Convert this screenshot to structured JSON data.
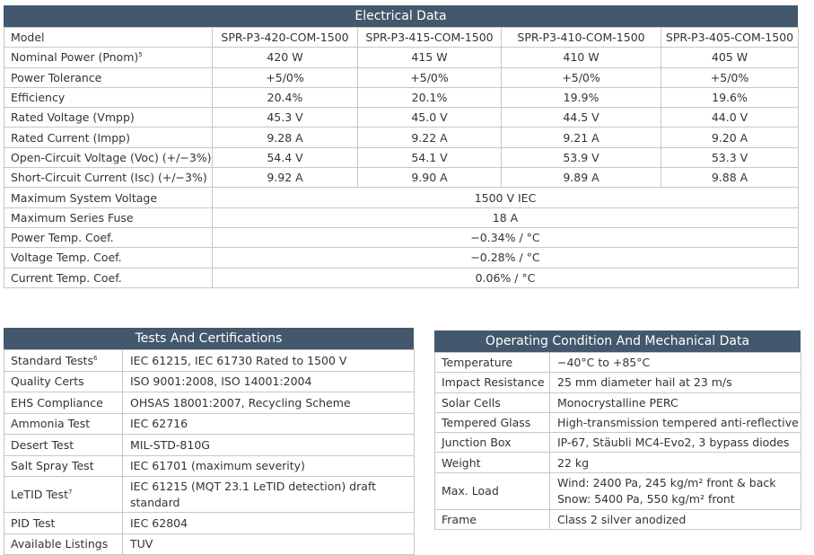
{
  "electrical": {
    "title": "Electrical Data",
    "columns": [
      "Model",
      "SPR-P3-420-COM-1500",
      "SPR-P3-415-COM-1500",
      "SPR-P3-410-COM-1500",
      "SPR-P3-405-COM-1500"
    ],
    "rows": [
      {
        "label": "Nominal Power (Pnom)",
        "sup": "5",
        "values": [
          "420 W",
          "415 W",
          "410 W",
          "405 W"
        ]
      },
      {
        "label": "Power Tolerance",
        "values": [
          "+5/0%",
          "+5/0%",
          "+5/0%",
          "+5/0%"
        ]
      },
      {
        "label": "Efficiency",
        "values": [
          "20.4%",
          "20.1%",
          "19.9%",
          "19.6%"
        ]
      },
      {
        "label": "Rated Voltage (Vmpp)",
        "values": [
          "45.3 V",
          "45.0 V",
          "44.5 V",
          "44.0 V"
        ]
      },
      {
        "label": "Rated Current (Impp)",
        "values": [
          "9.28 A",
          "9.22 A",
          "9.21 A",
          "9.20 A"
        ]
      },
      {
        "label": "Open-Circuit Voltage (Voc) (+/−3%)",
        "values": [
          "54.4 V",
          "54.1 V",
          "53.9 V",
          "53.3 V"
        ]
      },
      {
        "label": "Short-Circuit Current (Isc) (+/−3%)",
        "values": [
          "9.92 A",
          "9.90 A",
          "9.89 A",
          "9.88 A"
        ]
      }
    ],
    "shared_rows": [
      {
        "label": "Maximum System Voltage",
        "value": "1500 V IEC"
      },
      {
        "label": "Maximum Series Fuse",
        "value": "18 A"
      },
      {
        "label": "Power Temp. Coef.",
        "value": "−0.34% / °C"
      },
      {
        "label": "Voltage Temp. Coef.",
        "value": "−0.28% / °C"
      },
      {
        "label": "Current Temp. Coef.",
        "value": "0.06% / °C"
      }
    ]
  },
  "tests": {
    "title": "Tests And Certifications",
    "rows": [
      {
        "label": "Standard Tests",
        "sup": "6",
        "value": "IEC 61215, IEC 61730 Rated to 1500 V"
      },
      {
        "label": "Quality Certs",
        "value": "ISO 9001:2008, ISO 14001:2004"
      },
      {
        "label": "EHS Compliance",
        "value": "OHSAS 18001:2007, Recycling Scheme"
      },
      {
        "label": "Ammonia Test",
        "value": "IEC 62716"
      },
      {
        "label": "Desert Test",
        "value": "MIL-STD-810G"
      },
      {
        "label": "Salt Spray Test",
        "value": "IEC 61701 (maximum severity)"
      },
      {
        "label": "LeTID Test",
        "sup": "7",
        "value": "IEC 61215 (MQT 23.1 LeTID detection) draft standard"
      },
      {
        "label": "PID Test",
        "value": "IEC 62804"
      },
      {
        "label": "Available Listings",
        "value": "TUV"
      }
    ]
  },
  "operating": {
    "title": "Operating Condition And Mechanical Data",
    "rows": [
      {
        "label": "Temperature",
        "value": "−40°C to +85°C"
      },
      {
        "label": "Impact Resistance",
        "value": "25 mm diameter hail at 23 m/s"
      },
      {
        "label": "Solar Cells",
        "value": "Monocrystalline PERC"
      },
      {
        "label": "Tempered Glass",
        "value": "High-transmission tempered anti-reflective"
      },
      {
        "label": "Junction Box",
        "value": "IP-67, Stäubli MC4-Evo2, 3 bypass diodes"
      },
      {
        "label": "Weight",
        "value": "22 kg"
      },
      {
        "label": "Max. Load",
        "value": "Wind: 2400 Pa, 245 kg/m² front & back",
        "value2": "Snow: 5400 Pa, 550 kg/m² front"
      },
      {
        "label": "Frame",
        "value": "Class 2 silver anodized"
      }
    ]
  },
  "colors": {
    "header_bg": "#43586c",
    "border": "#c7c7c7",
    "text": "#333333"
  }
}
